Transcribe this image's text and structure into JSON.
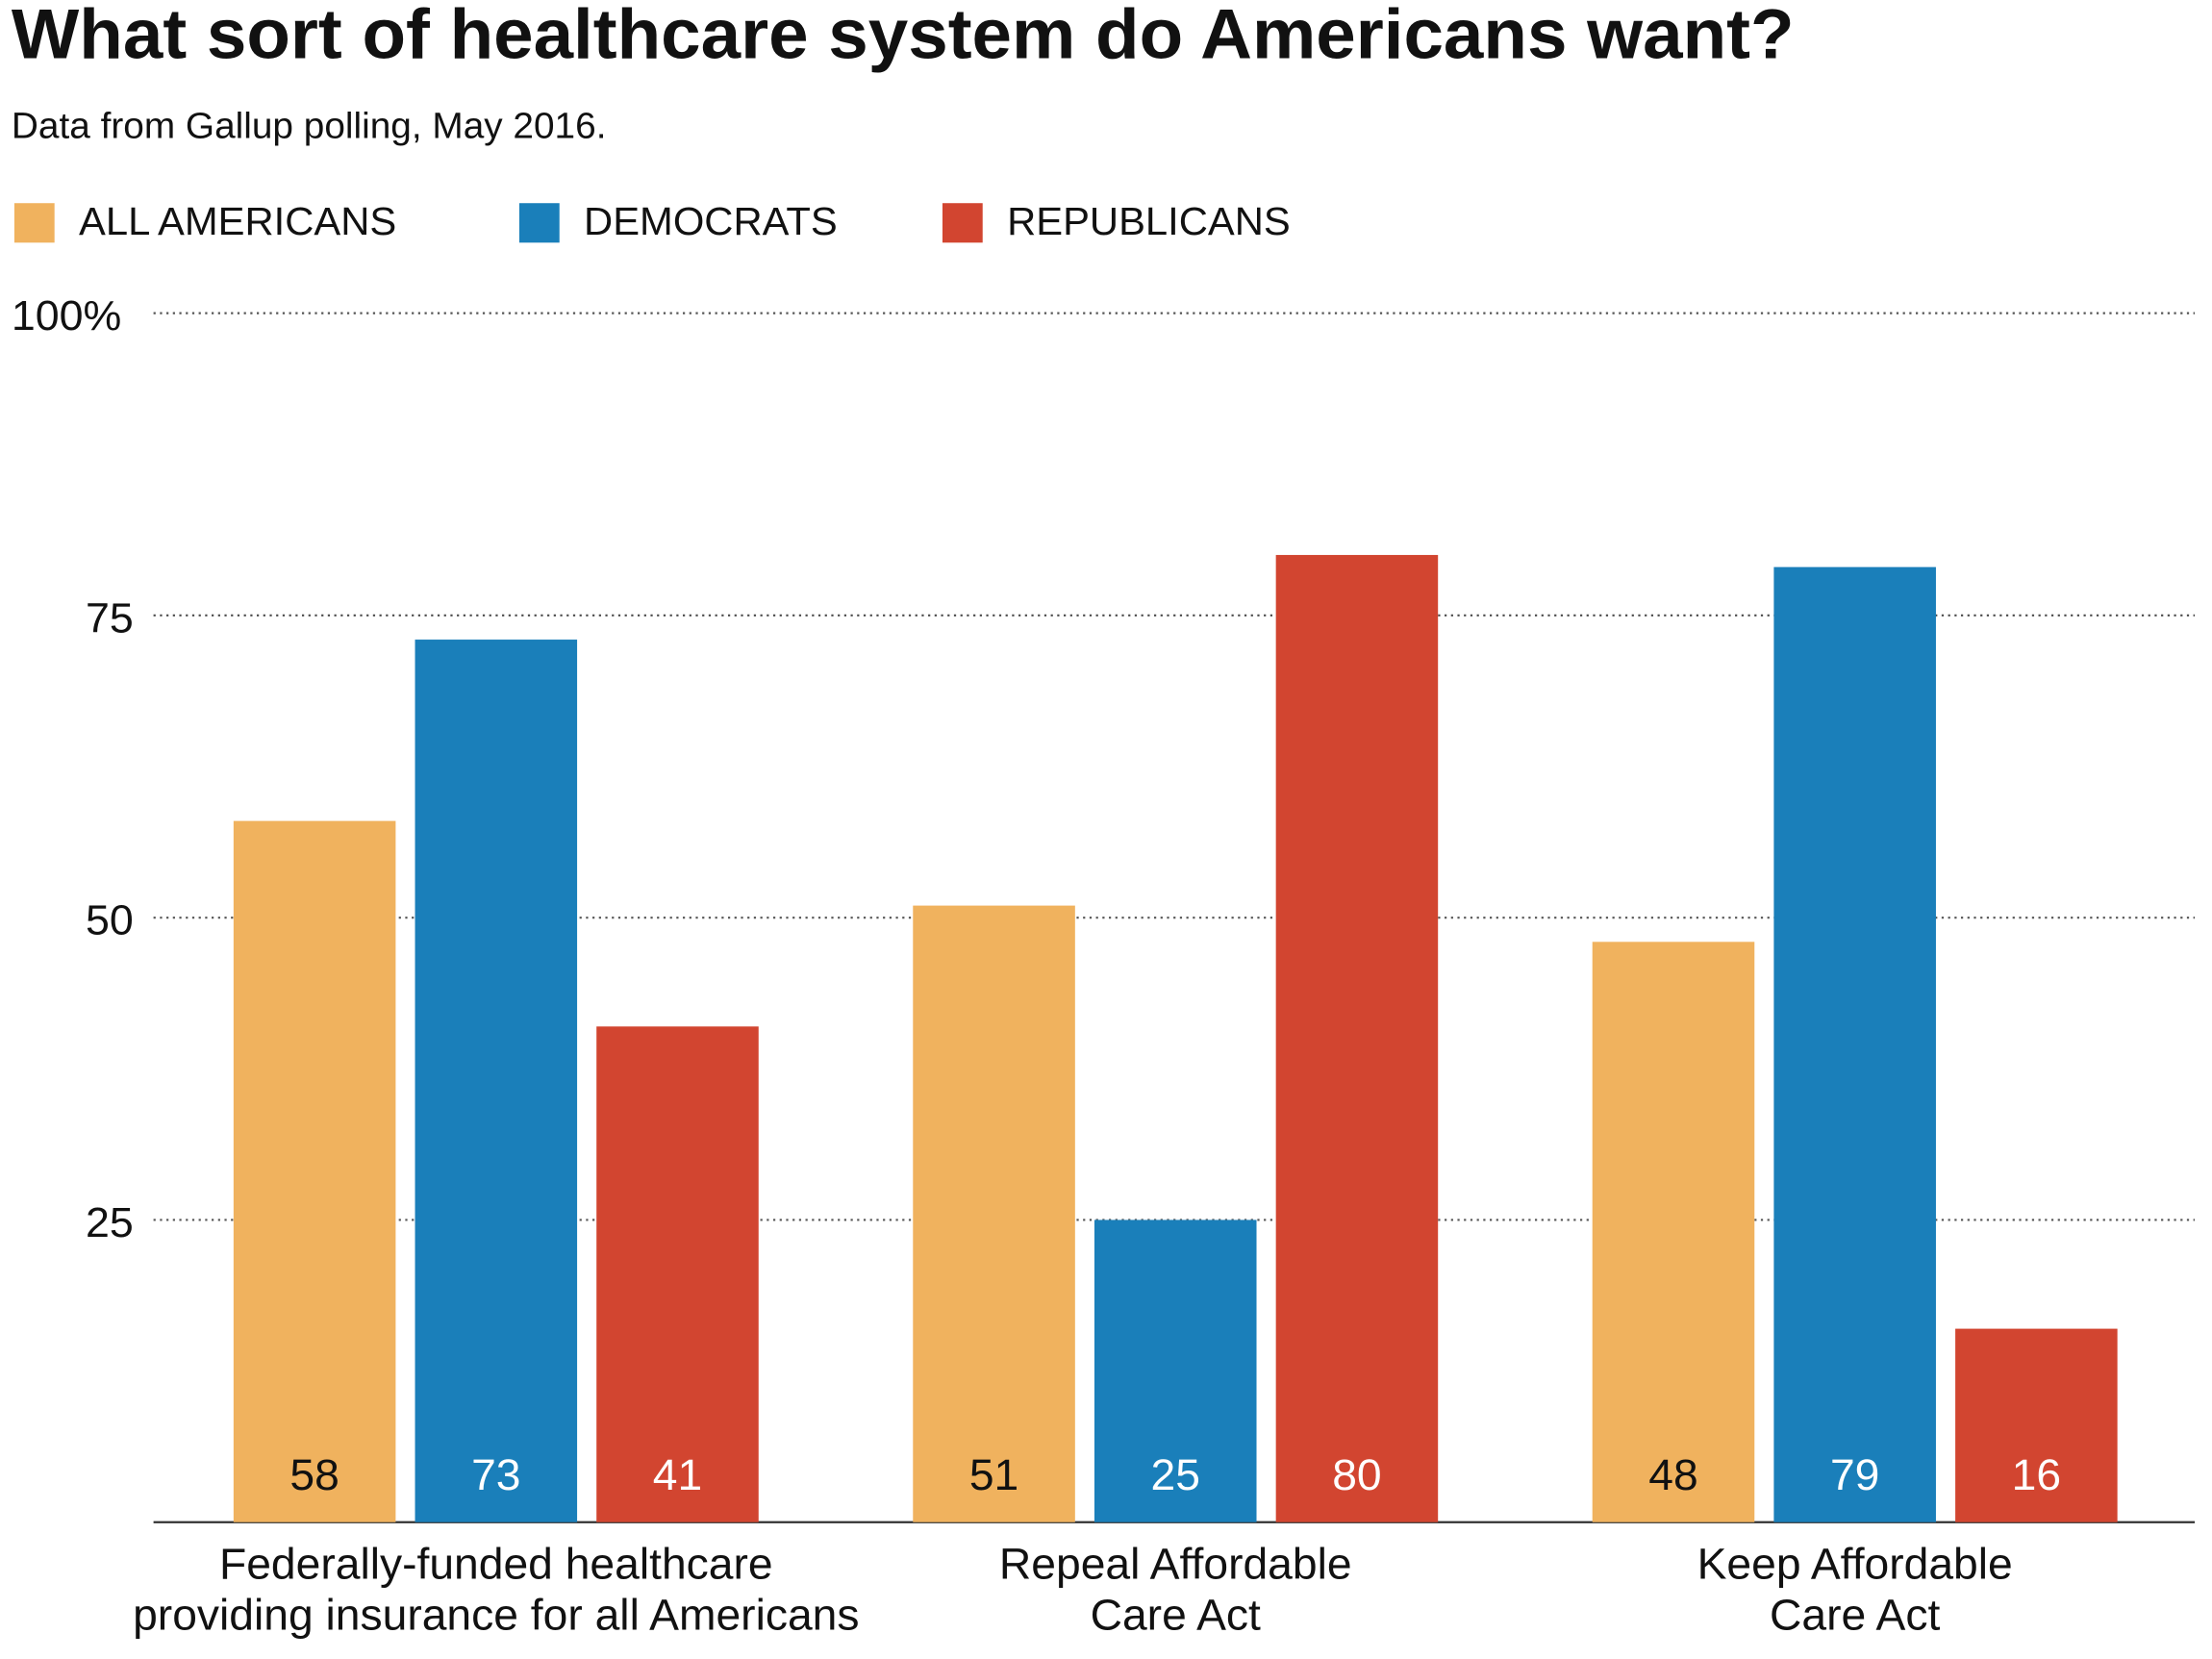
{
  "chart_data": {
    "type": "bar",
    "title": "What sort of healthcare system do Americans want?",
    "subtitle": "Data from Gallup polling, May 2016.",
    "categories": [
      "Federally-funded healthcare\nproviding insurance for all Americans",
      "Repeal Affordable\nCare Act",
      "Keep Affordable\nCare Act"
    ],
    "series": [
      {
        "name": "ALL AMERICANS",
        "color": "#f0b25e",
        "values": [
          58,
          51,
          48
        ]
      },
      {
        "name": "DEMOCRATS",
        "color": "#1a7fba",
        "values": [
          73,
          25,
          79
        ]
      },
      {
        "name": "REPUBLICANS",
        "color": "#d24530",
        "values": [
          41,
          80,
          16
        ]
      }
    ],
    "ylim": [
      0,
      100
    ],
    "yticks": [
      25,
      50,
      75,
      {
        "value": 100,
        "label": "100%"
      }
    ],
    "grid": true,
    "legend": "top"
  }
}
